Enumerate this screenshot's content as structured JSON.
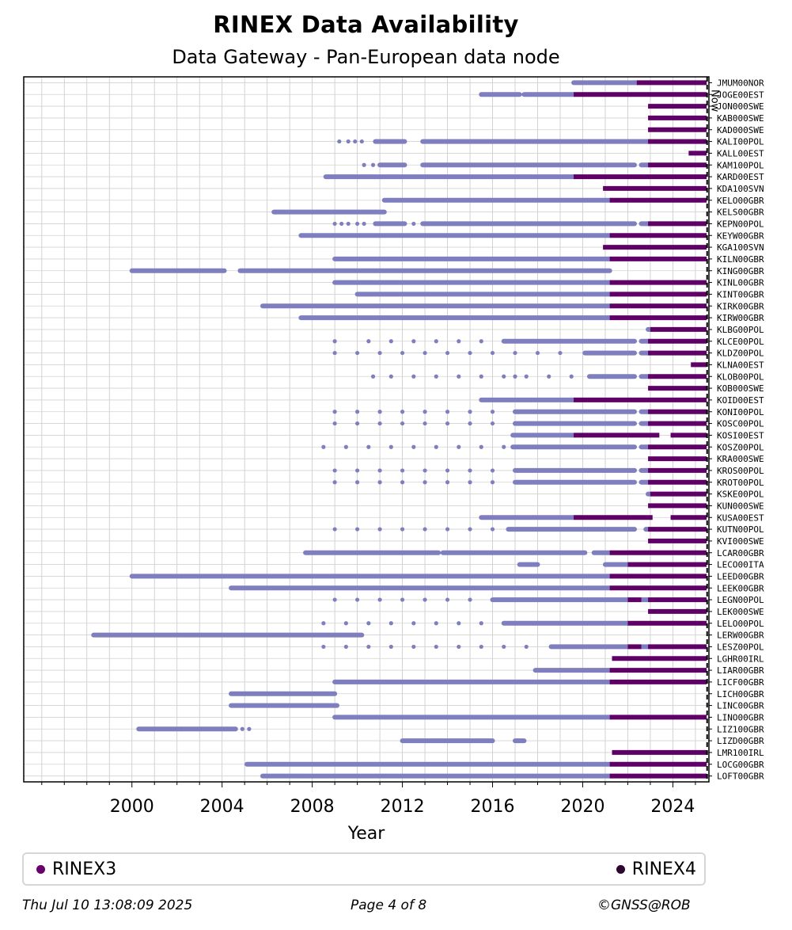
{
  "header": {
    "title": "RINEX Data Availability",
    "subtitle": "Data Gateway - Pan-European data node"
  },
  "legend": {
    "rinex3_label": "RINEX3",
    "rinex4_label": "RINEX4",
    "rinex3_color": "#6a006e",
    "rinex4_color": "#2e0730"
  },
  "footer": {
    "date": "Thu Jul 10 13:08:09 2025",
    "page": "Page 4 of 8",
    "copyright": "©GNSS@ROB"
  },
  "chart_data": {
    "type": "timeline",
    "xlabel": "Year",
    "xlim": [
      1995.2,
      2025.6
    ],
    "xticks": [
      2000,
      2004,
      2008,
      2012,
      2016,
      2020,
      2024
    ],
    "now": 2025.52,
    "now_label": "Now",
    "grid": true,
    "colors": {
      "rinex2": "#7f7fbf",
      "rinex3": "#5e0066"
    },
    "stations": [
      {
        "name": "JMUM00NOR",
        "r2": [
          [
            2019.6,
            2022.4
          ]
        ],
        "r3": [
          [
            2022.4,
            2025.5
          ]
        ]
      },
      {
        "name": "JOGE00EST",
        "r2": [
          [
            2015.5,
            2017.2
          ],
          [
            2017.4,
            2019.6
          ]
        ],
        "r3": [
          [
            2019.6,
            2025.5
          ]
        ]
      },
      {
        "name": "JON000SWE",
        "r2": [],
        "r3": [
          [
            2022.9,
            2025.5
          ]
        ]
      },
      {
        "name": "KAB000SWE",
        "r2": [],
        "r3": [
          [
            2022.9,
            2025.5
          ]
        ]
      },
      {
        "name": "KAD000SWE",
        "r2": [],
        "r3": [
          [
            2022.9,
            2025.5
          ]
        ]
      },
      {
        "name": "KALI00POL",
        "r2": [
          [
            2010.8,
            2012.1
          ],
          [
            2012.9,
            2022.9
          ]
        ],
        "r3": [
          [
            2022.9,
            2025.5
          ]
        ]
      },
      {
        "name": "KALL00EST",
        "r2": [],
        "r3": [
          [
            2024.7,
            2025.5
          ]
        ]
      },
      {
        "name": "KAM100POL",
        "r2": [
          [
            2011.0,
            2012.1
          ],
          [
            2012.9,
            2022.3
          ],
          [
            2022.6,
            2022.9
          ]
        ],
        "r3": [
          [
            2022.9,
            2025.5
          ]
        ]
      },
      {
        "name": "KARD00EST",
        "r2": [
          [
            2008.6,
            2019.6
          ]
        ],
        "r3": [
          [
            2019.6,
            2025.5
          ]
        ]
      },
      {
        "name": "KDA100SVN",
        "r2": [],
        "r3": [
          [
            2020.9,
            2025.5
          ]
        ]
      },
      {
        "name": "KELO00GBR",
        "r2": [
          [
            2011.2,
            2021.2
          ]
        ],
        "r3": [
          [
            2021.2,
            2025.5
          ]
        ]
      },
      {
        "name": "KELS00GBR",
        "r2": [
          [
            2006.3,
            2011.2
          ]
        ],
        "r3": []
      },
      {
        "name": "KEPN00POL",
        "r2": [
          [
            2010.8,
            2012.1
          ],
          [
            2012.9,
            2022.3
          ],
          [
            2022.6,
            2022.9
          ]
        ],
        "r3": [
          [
            2022.9,
            2025.5
          ]
        ]
      },
      {
        "name": "KEYW00GBR",
        "r2": [
          [
            2007.5,
            2021.2
          ]
        ],
        "r3": [
          [
            2021.2,
            2025.5
          ]
        ]
      },
      {
        "name": "KGA100SVN",
        "r2": [],
        "r3": [
          [
            2020.9,
            2025.5
          ]
        ]
      },
      {
        "name": "KILN00GBR",
        "r2": [
          [
            2009.0,
            2021.2
          ]
        ],
        "r3": [
          [
            2021.2,
            2025.5
          ]
        ]
      },
      {
        "name": "KING00GBR",
        "r2": [
          [
            2000.0,
            2004.1
          ],
          [
            2004.8,
            2021.2
          ]
        ],
        "r3": []
      },
      {
        "name": "KINL00GBR",
        "r2": [
          [
            2009.0,
            2021.2
          ]
        ],
        "r3": [
          [
            2021.2,
            2025.5
          ]
        ]
      },
      {
        "name": "KINT00GBR",
        "r2": [
          [
            2010.0,
            2021.2
          ]
        ],
        "r3": [
          [
            2021.2,
            2025.5
          ]
        ]
      },
      {
        "name": "KIRK00GBR",
        "r2": [
          [
            2005.8,
            2021.2
          ]
        ],
        "r3": [
          [
            2021.2,
            2025.5
          ]
        ]
      },
      {
        "name": "KIRW00GBR",
        "r2": [
          [
            2007.5,
            2021.2
          ]
        ],
        "r3": [
          [
            2021.2,
            2025.5
          ]
        ]
      },
      {
        "name": "KLBG00POL",
        "r2": [
          [
            2022.9,
            2023.0
          ]
        ],
        "r3": [
          [
            2023.0,
            2025.5
          ]
        ]
      },
      {
        "name": "KLCE00POL",
        "r2": [
          [
            2016.5,
            2022.3
          ],
          [
            2022.6,
            2022.9
          ]
        ],
        "r3": [
          [
            2022.9,
            2025.5
          ]
        ]
      },
      {
        "name": "KLDZ00POL",
        "r2": [
          [
            2020.1,
            2022.3
          ],
          [
            2022.6,
            2022.9
          ]
        ],
        "r3": [
          [
            2022.9,
            2025.5
          ]
        ]
      },
      {
        "name": "KLNA00EST",
        "r2": [],
        "r3": [
          [
            2024.8,
            2025.5
          ]
        ]
      },
      {
        "name": "KLOB00POL",
        "r2": [
          [
            2020.3,
            2022.3
          ],
          [
            2022.6,
            2022.9
          ]
        ],
        "r3": [
          [
            2022.9,
            2025.5
          ]
        ]
      },
      {
        "name": "KOB000SWE",
        "r2": [],
        "r3": [
          [
            2022.9,
            2025.5
          ]
        ]
      },
      {
        "name": "KOID00EST",
        "r2": [
          [
            2015.5,
            2019.6
          ]
        ],
        "r3": [
          [
            2019.6,
            2025.5
          ]
        ]
      },
      {
        "name": "KONI00POL",
        "r2": [
          [
            2017.0,
            2022.3
          ],
          [
            2022.6,
            2022.9
          ]
        ],
        "r3": [
          [
            2022.9,
            2025.5
          ]
        ]
      },
      {
        "name": "KOSC00POL",
        "r2": [
          [
            2017.0,
            2022.3
          ],
          [
            2022.6,
            2022.9
          ]
        ],
        "r3": [
          [
            2022.9,
            2025.5
          ]
        ]
      },
      {
        "name": "KOSI00EST",
        "r2": [
          [
            2016.9,
            2019.6
          ]
        ],
        "r3": [
          [
            2019.6,
            2023.4
          ],
          [
            2023.9,
            2025.5
          ]
        ]
      },
      {
        "name": "KOSZ00POL",
        "r2": [
          [
            2016.9,
            2022.3
          ],
          [
            2022.6,
            2022.9
          ]
        ],
        "r3": [
          [
            2022.9,
            2025.5
          ]
        ]
      },
      {
        "name": "KRA000SWE",
        "r2": [],
        "r3": [
          [
            2022.9,
            2025.5
          ]
        ]
      },
      {
        "name": "KROS00POL",
        "r2": [
          [
            2017.0,
            2022.3
          ],
          [
            2022.6,
            2022.9
          ]
        ],
        "r3": [
          [
            2022.9,
            2025.5
          ]
        ]
      },
      {
        "name": "KROT00POL",
        "r2": [
          [
            2017.0,
            2022.3
          ],
          [
            2022.6,
            2022.9
          ]
        ],
        "r3": [
          [
            2022.9,
            2025.5
          ]
        ]
      },
      {
        "name": "KSKE00POL",
        "r2": [
          [
            2022.9,
            2023.0
          ]
        ],
        "r3": [
          [
            2023.0,
            2025.5
          ]
        ]
      },
      {
        "name": "KUN000SWE",
        "r2": [],
        "r3": [
          [
            2022.9,
            2025.5
          ]
        ]
      },
      {
        "name": "KUSA00EST",
        "r2": [
          [
            2015.5,
            2019.6
          ]
        ],
        "r3": [
          [
            2019.6,
            2023.1
          ],
          [
            2023.9,
            2025.5
          ]
        ]
      },
      {
        "name": "KUTN00POL",
        "r2": [
          [
            2016.7,
            2022.3
          ],
          [
            2022.8,
            2022.9
          ]
        ],
        "r3": [
          [
            2022.9,
            2025.5
          ]
        ]
      },
      {
        "name": "KVI000SWE",
        "r2": [],
        "r3": [
          [
            2022.9,
            2025.5
          ]
        ]
      },
      {
        "name": "LCAR00GBR",
        "r2": [
          [
            2007.7,
            2013.6
          ],
          [
            2013.8,
            2020.1
          ],
          [
            2020.5,
            2021.2
          ]
        ],
        "r3": [
          [
            2021.2,
            2025.5
          ]
        ]
      },
      {
        "name": "LECO00ITA",
        "r2": [
          [
            2017.2,
            2018.0
          ],
          [
            2021.0,
            2022.0
          ]
        ],
        "r3": [
          [
            2022.0,
            2025.5
          ]
        ]
      },
      {
        "name": "LEED00GBR",
        "r2": [
          [
            2000.0,
            2021.2
          ]
        ],
        "r3": [
          [
            2021.2,
            2025.5
          ]
        ]
      },
      {
        "name": "LEEK00GBR",
        "r2": [
          [
            2004.4,
            2021.2
          ]
        ],
        "r3": [
          [
            2021.2,
            2025.5
          ]
        ]
      },
      {
        "name": "LEGN00POL",
        "r2": [
          [
            2016.0,
            2022.0
          ],
          [
            2022.6,
            2022.9
          ]
        ],
        "r3": [
          [
            2022.0,
            2022.6
          ],
          [
            2022.9,
            2025.5
          ]
        ]
      },
      {
        "name": "LEK000SWE",
        "r2": [],
        "r3": [
          [
            2022.9,
            2025.5
          ]
        ]
      },
      {
        "name": "LELO00POL",
        "r2": [
          [
            2016.5,
            2022.0
          ]
        ],
        "r3": [
          [
            2022.0,
            2025.5
          ]
        ]
      },
      {
        "name": "LERW00GBR",
        "r2": [
          [
            1998.3,
            2010.2
          ]
        ],
        "r3": []
      },
      {
        "name": "LESZ00POL",
        "r2": [
          [
            2018.6,
            2022.0
          ],
          [
            2022.6,
            2022.9
          ]
        ],
        "r3": [
          [
            2022.0,
            2022.6
          ],
          [
            2022.9,
            2025.5
          ]
        ]
      },
      {
        "name": "LGHR00IRL",
        "r2": [],
        "r3": [
          [
            2021.3,
            2025.5
          ]
        ]
      },
      {
        "name": "LIAR00GBR",
        "r2": [
          [
            2017.9,
            2021.2
          ]
        ],
        "r3": [
          [
            2021.2,
            2025.5
          ]
        ]
      },
      {
        "name": "LICF00GBR",
        "r2": [
          [
            2009.0,
            2021.2
          ]
        ],
        "r3": [
          [
            2021.2,
            2025.5
          ]
        ]
      },
      {
        "name": "LICH00GBR",
        "r2": [
          [
            2004.4,
            2009.0
          ]
        ],
        "r3": []
      },
      {
        "name": "LINC00GBR",
        "r2": [
          [
            2004.4,
            2009.1
          ]
        ],
        "r3": []
      },
      {
        "name": "LINO00GBR",
        "r2": [
          [
            2009.0,
            2021.2
          ]
        ],
        "r3": [
          [
            2021.2,
            2025.5
          ]
        ]
      },
      {
        "name": "LIZ100GBR",
        "r2": [
          [
            2000.3,
            2004.6
          ]
        ],
        "r3": []
      },
      {
        "name": "LIZD00GBR",
        "r2": [
          [
            2012.0,
            2016.0
          ],
          [
            2017.0,
            2017.4
          ]
        ],
        "r3": []
      },
      {
        "name": "LMR100IRL",
        "r2": [],
        "r3": [
          [
            2021.3,
            2025.5
          ]
        ]
      },
      {
        "name": "LOCG00GBR",
        "r2": [
          [
            2005.1,
            2021.2
          ]
        ],
        "r3": [
          [
            2021.2,
            2025.5
          ]
        ]
      },
      {
        "name": "LOFT00GBR",
        "r2": [
          [
            2005.8,
            2021.2
          ]
        ],
        "r3": [
          [
            2021.2,
            2025.5
          ]
        ]
      }
    ],
    "dotted": {
      "KALI00POL": [
        2009.2,
        2009.6,
        2009.9,
        2010.2
      ],
      "KAM100POL": [
        2010.3,
        2010.7
      ],
      "KEPN00POL": [
        2009.0,
        2009.3,
        2009.6,
        2010.0,
        2010.3,
        2012.5
      ],
      "KLCE00POL": [
        2009.0,
        2010.5,
        2011.5,
        2012.5,
        2013.5,
        2014.5,
        2015.5
      ],
      "KLDZ00POL": [
        2009.0,
        2010.0,
        2011.0,
        2012.0,
        2013.0,
        2014.0,
        2015.0,
        2016.0,
        2017.0,
        2018.0,
        2019.0
      ],
      "KLOB00POL": [
        2010.7,
        2011.5,
        2012.5,
        2013.5,
        2014.5,
        2015.5,
        2016.5,
        2017.0,
        2017.5,
        2018.5,
        2019.5
      ],
      "KONI00POL": [
        2009.0,
        2010.0,
        2011.0,
        2012.0,
        2013.0,
        2014.0,
        2015.0,
        2016.0
      ],
      "KOSC00POL": [
        2009.0,
        2010.0,
        2011.0,
        2012.0,
        2013.0,
        2014.0,
        2015.0,
        2016.0
      ],
      "KOSZ00POL": [
        2008.5,
        2009.5,
        2010.5,
        2011.5,
        2012.5,
        2013.5,
        2014.5,
        2015.5,
        2016.5
      ],
      "KROS00POL": [
        2009.0,
        2010.0,
        2011.0,
        2012.0,
        2013.0,
        2014.0,
        2015.0,
        2016.0
      ],
      "KROT00POL": [
        2009.0,
        2010.0,
        2011.0,
        2012.0,
        2013.0,
        2014.0,
        2015.0,
        2016.0
      ],
      "KUTN00POL": [
        2009.0,
        2010.0,
        2011.0,
        2012.0,
        2013.0,
        2014.0,
        2015.0,
        2016.0
      ],
      "LEGN00POL": [
        2009.0,
        2010.0,
        2011.0,
        2012.0,
        2013.0,
        2014.0,
        2015.0
      ],
      "LELO00POL": [
        2008.5,
        2009.5,
        2010.5,
        2011.5,
        2012.5,
        2013.5,
        2014.5,
        2015.5
      ],
      "LESZ00POL": [
        2008.5,
        2009.5,
        2010.5,
        2011.5,
        2012.5,
        2013.5,
        2014.5,
        2015.5,
        2016.5,
        2017.5
      ],
      "LIZ100GBR": [
        2004.9,
        2005.2
      ]
    }
  }
}
